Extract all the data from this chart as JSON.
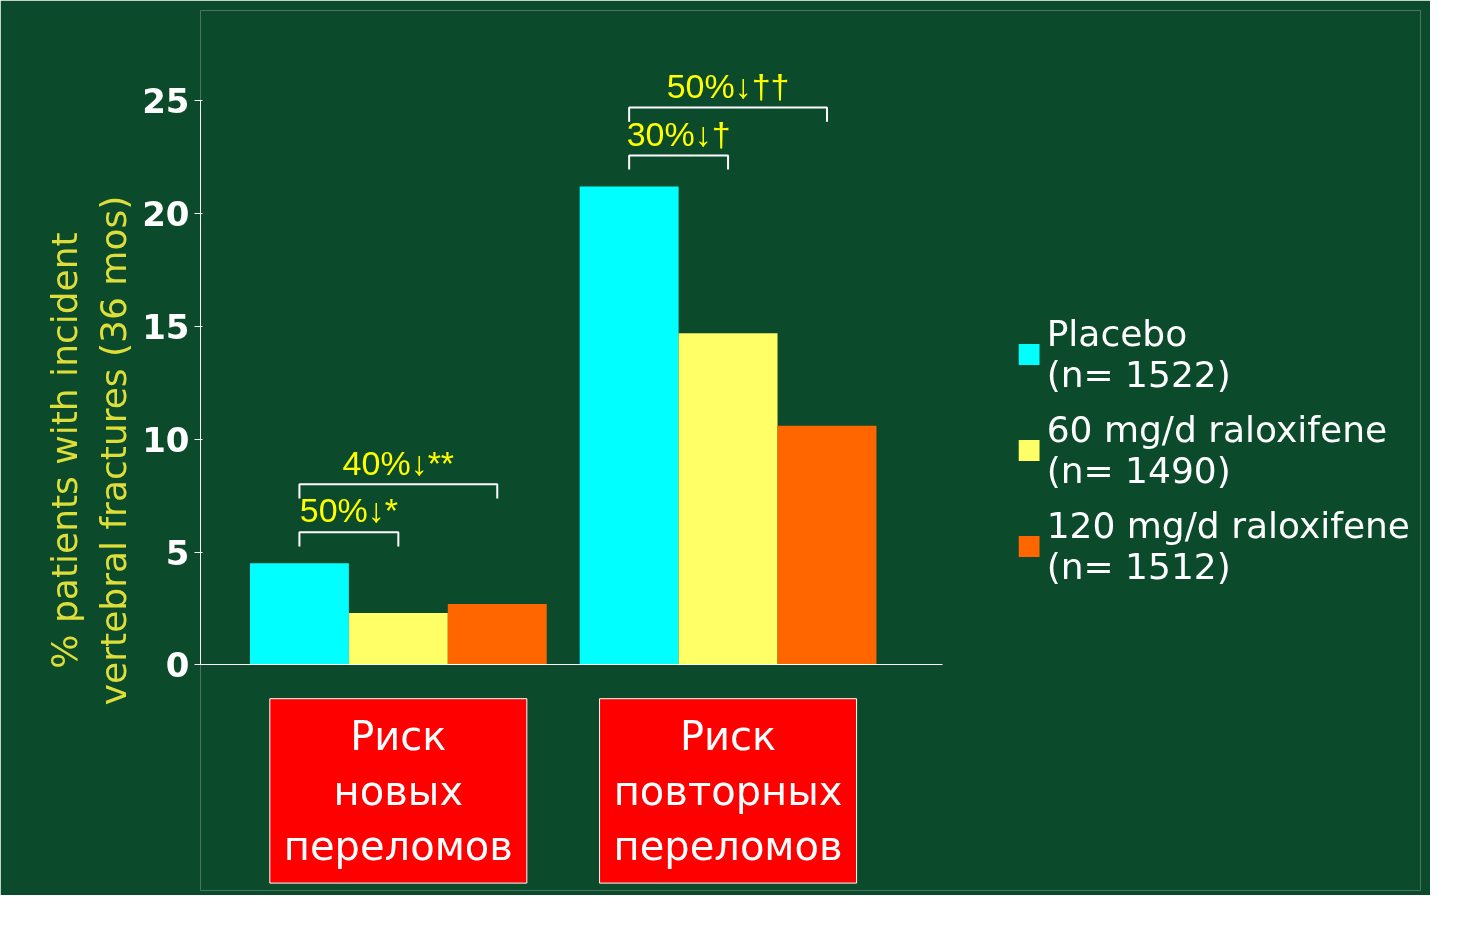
{
  "chart_data": {
    "type": "bar",
    "ylabel": "% patients with incident\nvertebral fractures (36 mos)",
    "categories": [
      "Риск\nновых\nпереломов",
      "Риск\nповторных\nпереломов"
    ],
    "series": [
      {
        "name": "Placebo\n(n= 1522)",
        "color": "#00ffff",
        "values": [
          4.5,
          21.2
        ]
      },
      {
        "name": "60 mg/d raloxifene\n(n= 1490)",
        "color": "#ffff66",
        "values": [
          2.3,
          14.7
        ]
      },
      {
        "name": "120 mg/d raloxifene\n(n= 1512)",
        "color": "#ff6600",
        "values": [
          2.7,
          10.6
        ]
      }
    ],
    "ylim": [
      0,
      25
    ],
    "yticks": [
      0,
      5,
      10,
      15,
      20,
      25
    ],
    "grid": false,
    "legend": "right",
    "annotations": [
      "50%↓*",
      "40%↓**",
      "30%↓†",
      "50%↓††"
    ]
  }
}
